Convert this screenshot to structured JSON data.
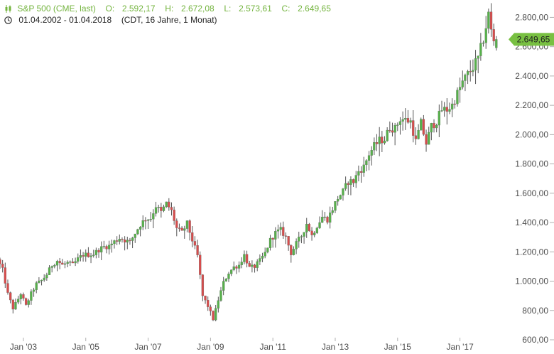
{
  "header": {
    "instrument": "S&P 500 (CME, last)",
    "open_label": "O:",
    "open_value": "2.592,17",
    "high_label": "H:",
    "high_value": "2.672,08",
    "low_label": "L:",
    "low_value": "2.573,61",
    "close_label": "C:",
    "close_value": "2.649,65",
    "date_range": "01.04.2002 - 01.04.2018",
    "meta": "(CDT, 16 Jahre, 1 Monat)"
  },
  "colors": {
    "up": "#56b14a",
    "down": "#d74c4c",
    "wick": "#555555",
    "axis_text": "#4e4e4e",
    "tick_line": "#b0b0b0",
    "price_tag": "#78c042",
    "header_text": "#74b43f"
  },
  "chart_data": {
    "type": "candlestick",
    "title": "S&P 500 (CME, last)",
    "x_tick_labels": [
      "Jan '03",
      "Jan '05",
      "Jan '07",
      "Jan '09",
      "Jan '11",
      "Jan '13",
      "Jan '15",
      "Jan '17"
    ],
    "x_ticks": [
      2003,
      2005,
      2007,
      2009,
      2011,
      2013,
      2015,
      2017
    ],
    "y_ticks": [
      600,
      800,
      1000,
      1200,
      1400,
      1600,
      1800,
      2000,
      2200,
      2400,
      2600,
      2800
    ],
    "y_tick_labels": [
      "600,00",
      "800,00",
      "1.000,00",
      "1.200,00",
      "1.400,00",
      "1.600,00",
      "1.800,00",
      "2.000,00",
      "2.200,00",
      "2.400,00",
      "2.600,00",
      "2.800,00"
    ],
    "ylim": [
      600,
      2870
    ],
    "xlim": [
      2002.25,
      2018.33
    ],
    "current_price_label": "2.649,65",
    "current_price": 2649.65,
    "last_candle": {
      "open": 2592.17,
      "high": 2672.08,
      "low": 2573.61,
      "close": 2649.65
    },
    "series_close": [
      [
        2002.25,
        1148
      ],
      [
        2002.42,
        1075
      ],
      [
        2002.58,
        915
      ],
      [
        2002.75,
        815
      ],
      [
        2002.92,
        880
      ],
      [
        2003.0,
        915
      ],
      [
        2003.17,
        830
      ],
      [
        2003.33,
        915
      ],
      [
        2003.5,
        980
      ],
      [
        2003.67,
        1005
      ],
      [
        2003.83,
        1045
      ],
      [
        2004.0,
        1110
      ],
      [
        2004.17,
        1140
      ],
      [
        2004.33,
        1110
      ],
      [
        2004.5,
        1125
      ],
      [
        2004.67,
        1110
      ],
      [
        2004.83,
        1150
      ],
      [
        2005.0,
        1180
      ],
      [
        2005.17,
        1180
      ],
      [
        2005.33,
        1185
      ],
      [
        2005.5,
        1215
      ],
      [
        2005.67,
        1235
      ],
      [
        2005.83,
        1240
      ],
      [
        2006.0,
        1270
      ],
      [
        2006.17,
        1295
      ],
      [
        2006.33,
        1280
      ],
      [
        2006.5,
        1265
      ],
      [
        2006.67,
        1330
      ],
      [
        2006.83,
        1385
      ],
      [
        2007.0,
        1425
      ],
      [
        2007.17,
        1430
      ],
      [
        2007.33,
        1515
      ],
      [
        2007.5,
        1470
      ],
      [
        2007.67,
        1530
      ],
      [
        2007.83,
        1480
      ],
      [
        2008.0,
        1360
      ],
      [
        2008.17,
        1330
      ],
      [
        2008.33,
        1395
      ],
      [
        2008.5,
        1280
      ],
      [
        2008.67,
        1170
      ],
      [
        2008.83,
        900
      ],
      [
        2009.0,
        830
      ],
      [
        2009.17,
        740
      ],
      [
        2009.33,
        870
      ],
      [
        2009.5,
        990
      ],
      [
        2009.67,
        1060
      ],
      [
        2009.83,
        1095
      ],
      [
        2010.0,
        1110
      ],
      [
        2010.17,
        1180
      ],
      [
        2010.33,
        1090
      ],
      [
        2010.5,
        1100
      ],
      [
        2010.67,
        1140
      ],
      [
        2010.83,
        1190
      ],
      [
        2011.0,
        1280
      ],
      [
        2011.17,
        1330
      ],
      [
        2011.33,
        1350
      ],
      [
        2011.5,
        1300
      ],
      [
        2011.67,
        1190
      ],
      [
        2011.83,
        1255
      ],
      [
        2012.0,
        1310
      ],
      [
        2012.17,
        1395
      ],
      [
        2012.33,
        1310
      ],
      [
        2012.5,
        1380
      ],
      [
        2012.67,
        1440
      ],
      [
        2012.83,
        1420
      ],
      [
        2013.0,
        1495
      ],
      [
        2013.17,
        1570
      ],
      [
        2013.33,
        1610
      ],
      [
        2013.5,
        1680
      ],
      [
        2013.67,
        1680
      ],
      [
        2013.83,
        1750
      ],
      [
        2014.0,
        1780
      ],
      [
        2014.17,
        1870
      ],
      [
        2014.33,
        1920
      ],
      [
        2014.5,
        1960
      ],
      [
        2014.67,
        1970
      ],
      [
        2014.83,
        2050
      ],
      [
        2015.0,
        2040
      ],
      [
        2015.17,
        2110
      ],
      [
        2015.33,
        2100
      ],
      [
        2015.5,
        2090
      ],
      [
        2015.67,
        1950
      ],
      [
        2015.83,
        2080
      ],
      [
        2016.0,
        1940
      ],
      [
        2016.17,
        2060
      ],
      [
        2016.33,
        2090
      ],
      [
        2016.5,
        2170
      ],
      [
        2016.67,
        2170
      ],
      [
        2016.83,
        2200
      ],
      [
        2017.0,
        2280
      ],
      [
        2017.17,
        2360
      ],
      [
        2017.33,
        2410
      ],
      [
        2017.5,
        2460
      ],
      [
        2017.67,
        2520
      ],
      [
        2017.83,
        2650
      ],
      [
        2018.0,
        2820
      ],
      [
        2018.08,
        2710
      ],
      [
        2018.17,
        2640
      ],
      [
        2018.25,
        2649.65
      ]
    ]
  }
}
